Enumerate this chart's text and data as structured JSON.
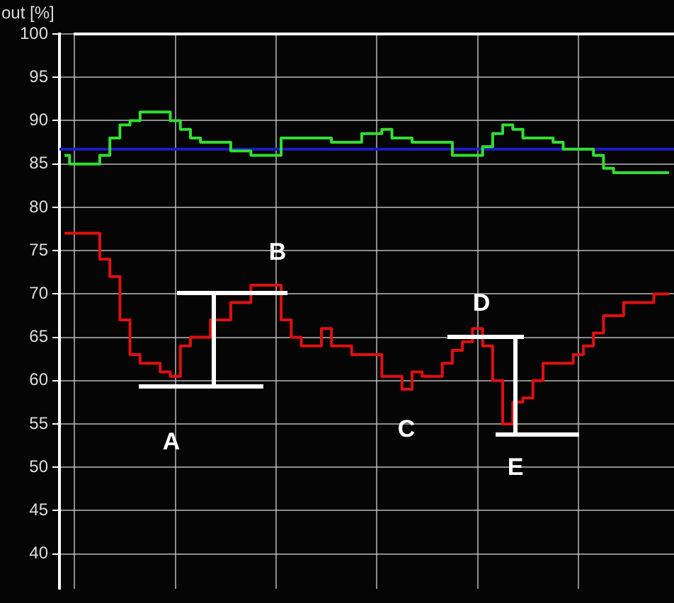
{
  "chart_data": {
    "type": "step",
    "ylabel": "out [%]",
    "categories": [
      null,
      null,
      null,
      null,
      null,
      null,
      null,
      null,
      null,
      null,
      null,
      null,
      null,
      null,
      null,
      null,
      null,
      null,
      null,
      null,
      null,
      null,
      null,
      null,
      null,
      null,
      null,
      null,
      null,
      null,
      null,
      null,
      null,
      null,
      null,
      null,
      null,
      null,
      null,
      null,
      null,
      null,
      null,
      null,
      null,
      null,
      null,
      null,
      null,
      null,
      null,
      null,
      null,
      null,
      null,
      null,
      null,
      null,
      null,
      null,
      null
    ],
    "ylim": [
      36,
      100
    ],
    "yticks": [
      40,
      45,
      50,
      55,
      60,
      65,
      70,
      75,
      80,
      85,
      90,
      95,
      100
    ],
    "grid": true,
    "tick_labels": "y",
    "line_style": "solid",
    "marker": "none",
    "ref_lines": [
      {
        "axis": "y",
        "value": 86.7,
        "color": "#1c1cc8"
      }
    ],
    "series": [
      {
        "color": "#33dd33",
        "values": [
          86,
          85,
          85,
          85,
          86,
          88,
          89.5,
          90,
          91,
          91,
          91,
          90,
          89,
          88,
          87.5,
          87.5,
          87.5,
          86.5,
          86.5,
          86,
          86,
          86,
          88,
          88,
          88,
          88,
          88,
          87.5,
          87.5,
          87.5,
          88.5,
          88.5,
          89,
          88,
          88,
          87.5,
          87.5,
          87.5,
          87.5,
          86,
          86,
          86,
          87,
          88.5,
          89.5,
          89,
          88,
          88,
          88,
          87.5,
          86.7,
          86.7,
          86.7,
          86,
          84.5,
          84,
          84,
          84,
          84,
          84,
          84
        ]
      },
      {
        "color": "#e01010",
        "values": [
          77,
          77,
          77,
          77,
          74,
          72,
          67,
          63,
          62,
          62,
          61,
          60.5,
          64,
          65,
          65,
          67,
          67,
          69,
          69,
          71,
          71,
          71,
          67,
          65,
          64,
          64,
          66,
          64,
          64,
          63,
          63,
          63,
          60.5,
          60.5,
          59,
          61,
          60.5,
          60.5,
          62,
          63.5,
          64.5,
          66,
          64,
          60,
          55,
          57.5,
          58,
          60,
          62,
          62,
          62,
          63,
          64,
          65.5,
          67.5,
          67.5,
          69,
          69,
          69,
          70,
          70
        ]
      }
    ],
    "annotations": [
      "A",
      "B",
      "C",
      "D",
      "E"
    ]
  }
}
